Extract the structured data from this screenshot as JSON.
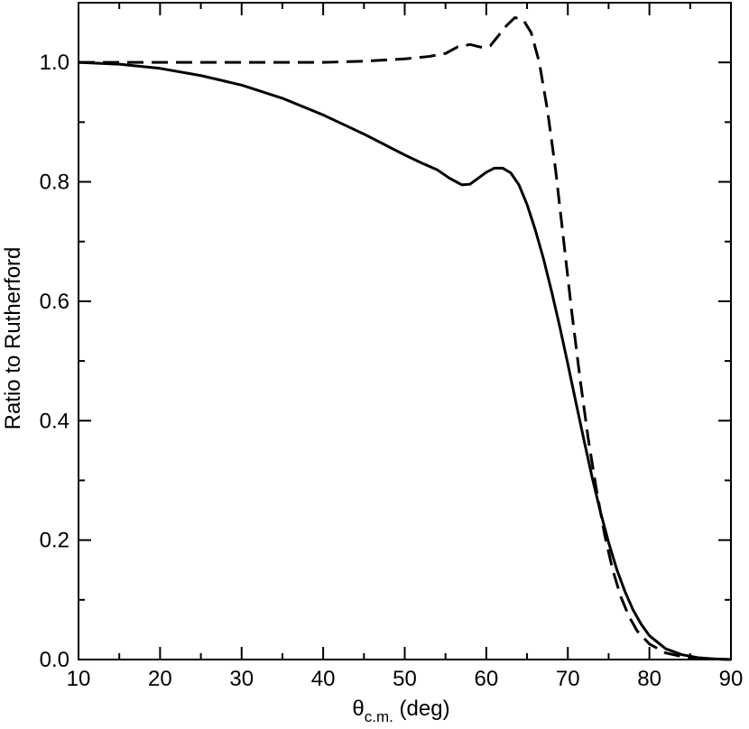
{
  "chart_data": {
    "type": "line",
    "xlabel": {
      "symbol": "θ",
      "subscript": "c.m.",
      "unit": " (deg)"
    },
    "ylabel": "Ratio to Rutherford",
    "xlim": [
      10,
      90
    ],
    "ylim": [
      0,
      1.1
    ],
    "x_ticks": [
      10,
      20,
      30,
      40,
      50,
      60,
      70,
      80,
      90
    ],
    "y_ticks": [
      0.0,
      0.2,
      0.4,
      0.6,
      0.8,
      1.0
    ],
    "x_tick_labels": [
      "10",
      "20",
      "30",
      "40",
      "50",
      "60",
      "70",
      "80",
      "90"
    ],
    "y_tick_labels": [
      "0.0",
      "0.2",
      "0.4",
      "0.6",
      "0.8",
      "1.0"
    ],
    "x_minor_step": 5,
    "y_minor_step": 0.1,
    "grid": false,
    "legend": "none",
    "series": [
      {
        "style": "solid",
        "color": "#000000",
        "points": [
          [
            10,
            1.0
          ],
          [
            15,
            0.997
          ],
          [
            20,
            0.99
          ],
          [
            25,
            0.978
          ],
          [
            30,
            0.962
          ],
          [
            35,
            0.94
          ],
          [
            40,
            0.912
          ],
          [
            45,
            0.88
          ],
          [
            50,
            0.845
          ],
          [
            52,
            0.832
          ],
          [
            54,
            0.82
          ],
          [
            55.5,
            0.806
          ],
          [
            57,
            0.795
          ],
          [
            58,
            0.796
          ],
          [
            59,
            0.806
          ],
          [
            60,
            0.816
          ],
          [
            61,
            0.823
          ],
          [
            62,
            0.823
          ],
          [
            63,
            0.815
          ],
          [
            64,
            0.795
          ],
          [
            65,
            0.762
          ],
          [
            66,
            0.72
          ],
          [
            67,
            0.672
          ],
          [
            68,
            0.617
          ],
          [
            69,
            0.558
          ],
          [
            70,
            0.495
          ],
          [
            71,
            0.43
          ],
          [
            72,
            0.366
          ],
          [
            73,
            0.304
          ],
          [
            74,
            0.247
          ],
          [
            75,
            0.196
          ],
          [
            76,
            0.151
          ],
          [
            77,
            0.114
          ],
          [
            78,
            0.083
          ],
          [
            79,
            0.059
          ],
          [
            80,
            0.04
          ],
          [
            82,
            0.018
          ],
          [
            84,
            0.008
          ],
          [
            86,
            0.003
          ],
          [
            88,
            0.001
          ],
          [
            90,
            0.0
          ]
        ]
      },
      {
        "style": "dashed",
        "color": "#000000",
        "points": [
          [
            10,
            1.0
          ],
          [
            20,
            1.0
          ],
          [
            30,
            1.0
          ],
          [
            40,
            1.0
          ],
          [
            45,
            1.002
          ],
          [
            50,
            1.006
          ],
          [
            53,
            1.01
          ],
          [
            55,
            1.015
          ],
          [
            56.5,
            1.026
          ],
          [
            58,
            1.03
          ],
          [
            59.5,
            1.025
          ],
          [
            60.5,
            1.028
          ],
          [
            61.5,
            1.045
          ],
          [
            62.5,
            1.062
          ],
          [
            63.5,
            1.075
          ],
          [
            64.5,
            1.072
          ],
          [
            65.5,
            1.05
          ],
          [
            66.5,
            1.0
          ],
          [
            67.5,
            0.92
          ],
          [
            68.5,
            0.82
          ],
          [
            69.5,
            0.7
          ],
          [
            70.5,
            0.58
          ],
          [
            71.5,
            0.47
          ],
          [
            72.5,
            0.37
          ],
          [
            73.5,
            0.285
          ],
          [
            74.5,
            0.21
          ],
          [
            75.5,
            0.15
          ],
          [
            76.5,
            0.105
          ],
          [
            77.5,
            0.072
          ],
          [
            78.5,
            0.048
          ],
          [
            80,
            0.026
          ],
          [
            82,
            0.011
          ],
          [
            84,
            0.005
          ],
          [
            86,
            0.002
          ],
          [
            88,
            0.001
          ],
          [
            90,
            0.0
          ]
        ]
      }
    ]
  }
}
